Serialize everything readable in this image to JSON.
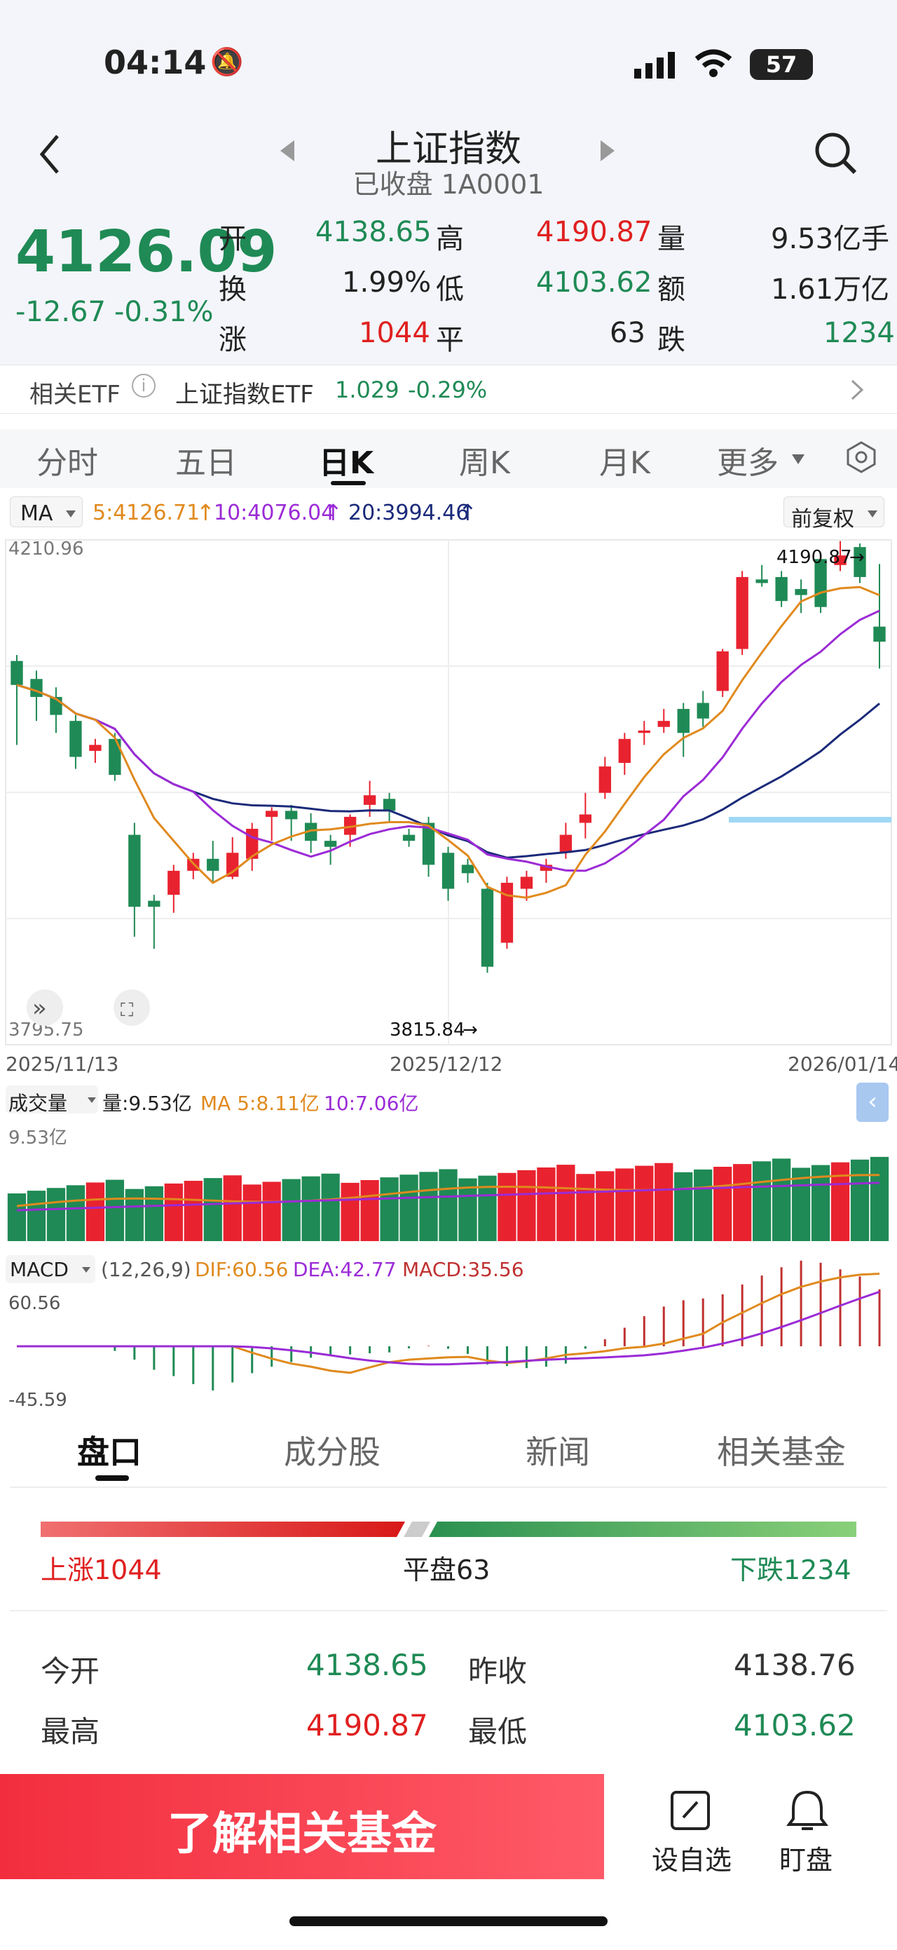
{
  "status": {
    "time": "04:14",
    "battery": "57"
  },
  "header": {
    "title": "上证指数",
    "subtitle": "已收盘 1A0001"
  },
  "quote": {
    "price": "4126.09",
    "change": "-12.67",
    "change_pct": "-0.31%",
    "open_label": "开",
    "open": "4138.65",
    "high_label": "高",
    "high": "4190.87",
    "vol_label": "量",
    "vol": "9.53亿手",
    "turn_label": "换",
    "turn": "1.99%",
    "low_label": "低",
    "low": "4103.62",
    "amt_label": "额",
    "amt": "1.61万亿",
    "up_label": "涨",
    "up": "1044",
    "flat_label": "平",
    "flat": "63",
    "down_label": "跌",
    "down": "1234"
  },
  "etf": {
    "label": "相关ETF",
    "name": "上证指数ETF",
    "price": "1.029",
    "pct": "-0.29%"
  },
  "tabs": [
    "分时",
    "五日",
    "日K",
    "周K",
    "月K",
    "更多"
  ],
  "ma_bar": {
    "ma": "MA",
    "ma5": "5:4126.71",
    "ma10": "10:4076.04",
    "ma20": "20:3994.46",
    "adj": "前复权"
  },
  "kline": {
    "ymax": "4210.96",
    "ymin": "3795.75",
    "high_mark": "4190.87",
    "low_mark": "3815.84",
    "dates": [
      "2025/11/13",
      "2025/12/12",
      "2026/01/14"
    ]
  },
  "volume": {
    "label": "成交量",
    "vol": "量:9.53亿",
    "ma5": "MA 5:8.11亿",
    "ma10": "10:7.06亿",
    "ymax": "9.53亿"
  },
  "macd": {
    "label": "MACD",
    "params": "(12,26,9)",
    "dif": "DIF:60.56",
    "dea": "DEA:42.77",
    "macd": "MACD:35.56",
    "ymax": "60.56",
    "ymin": "-45.59"
  },
  "bottom_tabs": [
    "盘口",
    "成分股",
    "新闻",
    "相关基金"
  ],
  "breadth": {
    "up": "上涨1044",
    "flat": "平盘63",
    "down": "下跌1234"
  },
  "details": {
    "open_label": "今开",
    "open": "4138.65",
    "prev_label": "昨收",
    "prev": "4138.76",
    "high_label": "最高",
    "high": "4190.87",
    "low_label": "最低",
    "low": "4103.62"
  },
  "actions": {
    "fund_btn": "了解相关基金",
    "watch": "设自选",
    "alert": "盯盘"
  },
  "chart_data": {
    "type": "candlestick",
    "ohlc": [
      [
        4110,
        4090,
        4115,
        4040
      ],
      [
        4095,
        4080,
        4102,
        4060
      ],
      [
        4080,
        4065,
        4088,
        4050
      ],
      [
        4060,
        4030,
        4065,
        4020
      ],
      [
        4035,
        4040,
        4045,
        4025
      ],
      [
        4045,
        4015,
        4050,
        4010
      ],
      [
        3965,
        3905,
        3975,
        3880
      ],
      [
        3910,
        3905,
        3915,
        3870
      ],
      [
        3915,
        3935,
        3940,
        3900
      ],
      [
        3935,
        3945,
        3950,
        3928
      ],
      [
        3945,
        3935,
        3960,
        3925
      ],
      [
        3930,
        3950,
        3963,
        3928
      ],
      [
        3945,
        3970,
        3975,
        3935
      ],
      [
        3980,
        3985,
        3988,
        3960
      ],
      [
        3985,
        3978,
        3990,
        3960
      ],
      [
        3975,
        3960,
        3983,
        3950
      ],
      [
        3960,
        3955,
        3965,
        3940
      ],
      [
        3965,
        3980,
        3982,
        3955
      ],
      [
        3990,
        3998,
        4010,
        3980
      ],
      [
        3995,
        3985,
        4000,
        3976
      ],
      [
        3965,
        3960,
        3970,
        3955
      ],
      [
        3975,
        3940,
        3980,
        3930
      ],
      [
        3950,
        3920,
        3955,
        3910
      ],
      [
        3940,
        3933,
        3945,
        3925
      ],
      [
        3920,
        3855,
        3925,
        3850
      ],
      [
        3875,
        3925,
        3930,
        3870
      ],
      [
        3920,
        3930,
        3935,
        3910
      ],
      [
        3935,
        3940,
        3945,
        3925
      ],
      [
        3950,
        3965,
        3975,
        3945
      ],
      [
        3975,
        3982,
        4000,
        3962
      ],
      [
        4000,
        4022,
        4030,
        3995
      ],
      [
        4025,
        4045,
        4050,
        4015
      ],
      [
        4050,
        4052,
        4060,
        4040
      ],
      [
        4055,
        4060,
        4070,
        4050
      ],
      [
        4070,
        4050,
        4075,
        4030
      ],
      [
        4075,
        4062,
        4085,
        4055
      ],
      [
        4085,
        4118,
        4120,
        4080
      ],
      [
        4120,
        4180,
        4185,
        4115
      ],
      [
        4178,
        4175,
        4190,
        4172
      ],
      [
        4180,
        4160,
        4185,
        4155
      ],
      [
        4170,
        4165,
        4178,
        4150
      ],
      [
        4195,
        4155,
        4198,
        4150
      ],
      [
        4190,
        4198,
        4210,
        4185
      ],
      [
        4205,
        4180,
        4208,
        4175
      ],
      [
        4138.65,
        4126.09,
        4190.87,
        4103.62
      ]
    ]
  }
}
